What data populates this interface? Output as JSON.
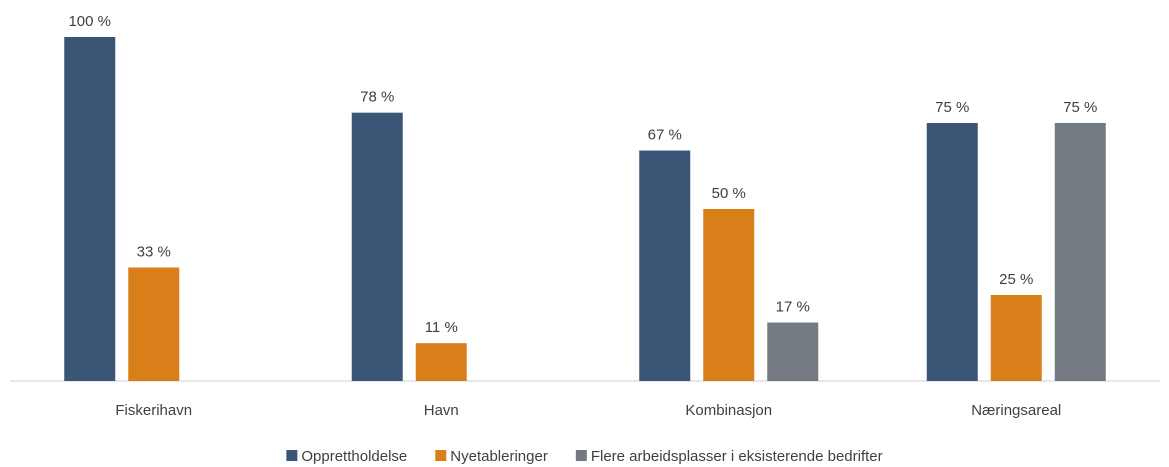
{
  "chart_data": {
    "type": "bar",
    "categories": [
      "Fiskerihavn",
      "Havn",
      "Kombinasjon",
      "Næringsareal"
    ],
    "series": [
      {
        "name": "Opprettholdelse",
        "color": "#3a5576",
        "values": [
          100,
          78,
          67,
          75
        ],
        "value_labels": [
          "100 %",
          "78 %",
          "67 %",
          "75 %"
        ]
      },
      {
        "name": "Nyetableringer",
        "color": "#d97f1a",
        "values": [
          33,
          11,
          50,
          25
        ],
        "value_labels": [
          "33 %",
          "11 %",
          "50 %",
          "25 %"
        ]
      },
      {
        "name": "Flere arbeidsplasser i eksisterende bedrifter",
        "color": "#737a82",
        "values": [
          null,
          null,
          17,
          75
        ],
        "value_labels": [
          null,
          null,
          "17 %",
          "75 %"
        ]
      }
    ],
    "ylim": [
      0,
      100
    ],
    "legend": "bottom"
  }
}
